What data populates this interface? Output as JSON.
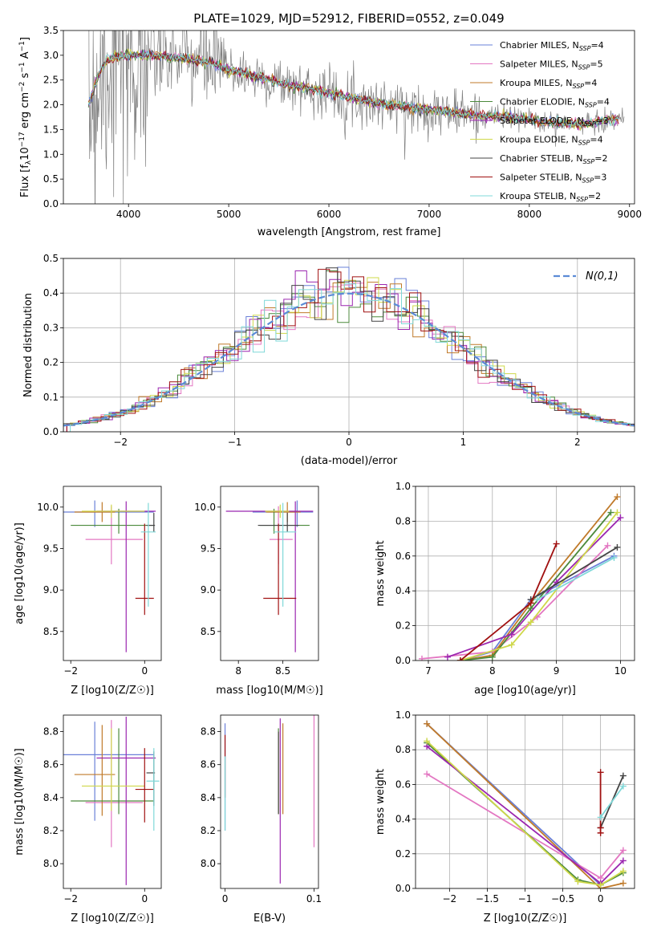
{
  "title": "PLATE=1029, MJD=52912, FIBERID=0552, z=0.049",
  "legend_entries": [
    {
      "name": "Chabrier MILES, N",
      "sub": "SSP",
      "tail": "=4",
      "color": "#6a80d8"
    },
    {
      "name": "Salpeter MILES, N",
      "sub": "SSP",
      "tail": "=5",
      "color": "#e377c2"
    },
    {
      "name": "Kroupa MILES, N",
      "sub": "SSP",
      "tail": "=4",
      "color": "#c07a2a"
    },
    {
      "name": "Chabrier ELODIE, N",
      "sub": "SSP",
      "tail": "=4",
      "color": "#4c8a3c"
    },
    {
      "name": "Salpeter ELODIE, N",
      "sub": "SSP",
      "tail": "=3",
      "color": "#9b27b0"
    },
    {
      "name": "Kroupa ELODIE, N",
      "sub": "SSP",
      "tail": "=4",
      "color": "#cfd84a"
    },
    {
      "name": "Chabrier STELIB, N",
      "sub": "SSP",
      "tail": "=2",
      "color": "#444444"
    },
    {
      "name": "Salpeter STELIB, N",
      "sub": "SSP",
      "tail": "=3",
      "color": "#a01010"
    },
    {
      "name": "Kroupa STELIB, N",
      "sub": "SSP",
      "tail": "=2",
      "color": "#7fd8d8"
    }
  ],
  "chart_data": [
    {
      "type": "line",
      "xlabel": "wavelength [Angstrom, rest frame]",
      "ylabel": "Flux [f_λ 10^-17 erg cm^-2 s^-1 A^-1]",
      "xlim": [
        3350,
        9050
      ],
      "ylim": [
        0,
        3.5
      ],
      "xticks": [
        4000,
        5000,
        6000,
        7000,
        8000,
        9000
      ],
      "yticks": [
        0.0,
        0.5,
        1.0,
        1.5,
        2.0,
        2.5,
        3.0,
        3.5
      ],
      "data_color": "#808080",
      "model_continuum": {
        "x": [
          3600,
          3700,
          3800,
          4000,
          4200,
          4500,
          4800,
          5000,
          5300,
          5600,
          6000,
          6300,
          6600,
          7000,
          7400,
          7800,
          8200,
          8500,
          8800
        ],
        "y": [
          2.0,
          2.6,
          2.95,
          3.0,
          3.0,
          2.95,
          2.85,
          2.7,
          2.55,
          2.4,
          2.25,
          2.1,
          2.0,
          1.9,
          1.8,
          1.75,
          1.65,
          1.6,
          1.7
        ]
      },
      "grid": false
    },
    {
      "type": "histogram",
      "xlabel": "(data-model)/error",
      "ylabel": "Normed distribution",
      "xlim": [
        -2.5,
        2.5
      ],
      "ylim": [
        0,
        0.5
      ],
      "xticks": [
        -2,
        -1,
        0,
        1,
        2
      ],
      "yticks": [
        0.0,
        0.1,
        0.2,
        0.3,
        0.4,
        0.5
      ],
      "legend": "N(0,1)",
      "gaussian": {
        "mean": 0,
        "sigma": 1,
        "color": "#5b8bd6"
      },
      "grid": true
    },
    {
      "type": "scatter",
      "xlabel": "Z [log10(Z/Z☉)]",
      "ylabel": "age [log10(age/yr)]",
      "xlim": [
        -2.2,
        0.45
      ],
      "ylim": [
        8.15,
        10.25
      ],
      "xticks": [
        -2,
        0
      ],
      "yticks": [
        8.5,
        9.0,
        9.5,
        10.0
      ],
      "points": [
        {
          "x": -1.35,
          "y": 9.94,
          "xe": [
            0.95,
            1.6
          ],
          "ye": [
            0.18,
            0.14
          ],
          "c": "#6a80d8"
        },
        {
          "x": -0.9,
          "y": 9.61,
          "xe": [
            0.7,
            0.85
          ],
          "ye": [
            0.3,
            0.4
          ],
          "c": "#e377c2"
        },
        {
          "x": -1.15,
          "y": 9.94,
          "xe": [
            0.75,
            0.35
          ],
          "ye": [
            0.12,
            0.12
          ],
          "c": "#c07a2a"
        },
        {
          "x": -0.7,
          "y": 9.78,
          "xe": [
            1.3,
            0.95
          ],
          "ye": [
            0.1,
            0.2
          ],
          "c": "#4c8a3c"
        },
        {
          "x": -0.5,
          "y": 9.95,
          "xe": [
            0.8,
            0.8
          ],
          "ye": [
            1.7,
            0.12
          ],
          "c": "#9b27b0"
        },
        {
          "x": -0.9,
          "y": 9.95,
          "xe": [
            0.8,
            0.9
          ],
          "ye": [
            0.08,
            0.08
          ],
          "c": "#cfd84a"
        },
        {
          "x": 0.25,
          "y": 9.78,
          "xe": [
            0.2,
            0.03
          ],
          "ye": [
            0.08,
            0.15
          ],
          "c": "#444444"
        },
        {
          "x": 0.0,
          "y": 8.9,
          "xe": [
            0.25,
            0.25
          ],
          "ye": [
            0.2,
            0.9
          ],
          "c": "#a01010"
        },
        {
          "x": 0.1,
          "y": 9.7,
          "xe": [
            0.2,
            0.2
          ],
          "ye": [
            0.9,
            0.35
          ],
          "c": "#7fd8d8"
        }
      ],
      "grid": false
    },
    {
      "type": "scatter",
      "xlabel": "mass [log10(M/M☉)]",
      "ylabel": "",
      "xlim": [
        7.8,
        8.9
      ],
      "ylim": [
        8.15,
        10.25
      ],
      "xticks": [
        8.0,
        8.5
      ],
      "yticks": [
        8.5,
        9.0,
        9.5,
        10.0
      ],
      "points": [
        {
          "x": 8.66,
          "y": 9.94,
          "xe": [
            0.5,
            0.18
          ],
          "ye": [
            0.18,
            0.14
          ],
          "c": "#6a80d8"
        },
        {
          "x": 8.45,
          "y": 9.61,
          "xe": [
            0.1,
            0.16
          ],
          "ye": [
            0.3,
            0.4
          ],
          "c": "#e377c2"
        },
        {
          "x": 8.55,
          "y": 9.94,
          "xe": [
            0.24,
            0.15
          ],
          "ye": [
            0.12,
            0.12
          ],
          "c": "#c07a2a"
        },
        {
          "x": 8.4,
          "y": 9.78,
          "xe": [
            0.16,
            0.4
          ],
          "ye": [
            0.1,
            0.2
          ],
          "c": "#4c8a3c"
        },
        {
          "x": 8.64,
          "y": 9.95,
          "xe": [
            0.78,
            0.2
          ],
          "ye": [
            1.7,
            0.12
          ],
          "c": "#9b27b0"
        },
        {
          "x": 8.47,
          "y": 9.95,
          "xe": [
            0.17,
            0.1
          ],
          "ye": [
            0.08,
            0.08
          ],
          "c": "#cfd84a"
        },
        {
          "x": 8.55,
          "y": 9.78,
          "xe": [
            0.33,
            0.13
          ],
          "ye": [
            0.08,
            0.15
          ],
          "c": "#444444"
        },
        {
          "x": 8.45,
          "y": 8.9,
          "xe": [
            0.17,
            0.2
          ],
          "ye": [
            0.2,
            0.9
          ],
          "c": "#a01010"
        },
        {
          "x": 8.5,
          "y": 9.7,
          "xe": [
            0.1,
            0.15
          ],
          "ye": [
            0.9,
            0.35
          ],
          "c": "#7fd8d8"
        }
      ],
      "grid": false
    },
    {
      "type": "line",
      "xlabel": "age [log10(age/yr)]",
      "ylabel": "mass weight",
      "xlim": [
        6.8,
        10.22
      ],
      "ylim": [
        0,
        1.0
      ],
      "xticks": [
        7,
        8,
        9,
        10
      ],
      "yticks": [
        0.0,
        0.2,
        0.4,
        0.6,
        0.8,
        1.0
      ],
      "series": [
        {
          "c": "#6a80d8",
          "x": [
            7.5,
            8.0,
            8.6,
            9.9
          ],
          "y": [
            0.0,
            0.05,
            0.35,
            0.6
          ]
        },
        {
          "c": "#e377c2",
          "x": [
            6.9,
            8.0,
            8.7,
            9.8
          ],
          "y": [
            0.01,
            0.05,
            0.25,
            0.66
          ]
        },
        {
          "c": "#c07a2a",
          "x": [
            7.5,
            8.0,
            8.6,
            9.95
          ],
          "y": [
            0.0,
            0.03,
            0.33,
            0.94
          ]
        },
        {
          "c": "#4c8a3c",
          "x": [
            7.5,
            8.0,
            8.6,
            9.85
          ],
          "y": [
            0.0,
            0.02,
            0.3,
            0.85
          ]
        },
        {
          "c": "#9b27b0",
          "x": [
            7.3,
            8.3,
            9.0,
            10.0
          ],
          "y": [
            0.02,
            0.15,
            0.45,
            0.82
          ]
        },
        {
          "c": "#cfd84a",
          "x": [
            7.5,
            8.3,
            8.6,
            9.95
          ],
          "y": [
            0.0,
            0.09,
            0.22,
            0.85
          ]
        },
        {
          "c": "#444444",
          "x": [
            8.6,
            9.95
          ],
          "y": [
            0.35,
            0.65
          ]
        },
        {
          "c": "#a01010",
          "x": [
            7.5,
            8.6,
            9.0
          ],
          "y": [
            0.0,
            0.33,
            0.67
          ]
        },
        {
          "c": "#7fd8d8",
          "x": [
            8.7,
            9.9
          ],
          "y": [
            0.35,
            0.59
          ]
        }
      ],
      "grid": true
    },
    {
      "type": "scatter",
      "xlabel": "Z [log10(Z/Z☉)]",
      "ylabel": "mass [log10(M/M☉)]",
      "xlim": [
        -2.2,
        0.45
      ],
      "ylim": [
        7.85,
        8.9
      ],
      "xticks": [
        -2,
        0
      ],
      "yticks": [
        8.0,
        8.2,
        8.4,
        8.6,
        8.8
      ],
      "points": [
        {
          "x": -1.35,
          "y": 8.66,
          "xe": [
            0.95,
            1.6
          ],
          "ye": [
            0.4,
            0.2
          ],
          "c": "#6a80d8"
        },
        {
          "x": -0.9,
          "y": 8.37,
          "xe": [
            0.7,
            0.85
          ],
          "ye": [
            0.27,
            0.5
          ],
          "c": "#e377c2"
        },
        {
          "x": -1.15,
          "y": 8.54,
          "xe": [
            0.75,
            0.35
          ],
          "ye": [
            0.25,
            0.3
          ],
          "c": "#c07a2a"
        },
        {
          "x": -0.7,
          "y": 8.38,
          "xe": [
            1.3,
            0.95
          ],
          "ye": [
            0.08,
            0.44
          ],
          "c": "#4c8a3c"
        },
        {
          "x": -0.5,
          "y": 8.64,
          "xe": [
            0.8,
            0.8
          ],
          "ye": [
            0.77,
            0.25
          ],
          "c": "#9b27b0"
        },
        {
          "x": -0.9,
          "y": 8.47,
          "xe": [
            0.8,
            0.9
          ],
          "ye": [
            0.15,
            0.35
          ],
          "c": "#cfd84a"
        },
        {
          "x": 0.25,
          "y": 8.55,
          "xe": [
            0.2,
            0.03
          ],
          "ye": [
            0.2,
            0.13
          ],
          "c": "#444444"
        },
        {
          "x": 0.0,
          "y": 8.45,
          "xe": [
            0.25,
            0.25
          ],
          "ye": [
            0.2,
            0.25
          ],
          "c": "#a01010"
        },
        {
          "x": 0.25,
          "y": 8.5,
          "xe": [
            0.2,
            0.15
          ],
          "ye": [
            0.3,
            0.2
          ],
          "c": "#7fd8d8"
        }
      ],
      "grid": false
    },
    {
      "type": "scatter",
      "xlabel": "E(B-V)",
      "ylabel": "",
      "xlim": [
        -0.005,
        0.105
      ],
      "ylim": [
        7.85,
        8.9
      ],
      "xticks": [
        0.0,
        0.1
      ],
      "yticks": [
        8.0,
        8.2,
        8.4,
        8.6,
        8.8
      ],
      "points": [
        {
          "x": 0.0,
          "y": 8.6,
          "xe": [
            0,
            0
          ],
          "ye": [
            0.4,
            0.25
          ],
          "c": "#6a80d8"
        },
        {
          "x": 0.1,
          "y": 8.5,
          "xe": [
            0,
            0
          ],
          "ye": [
            0.4,
            0.4
          ],
          "c": "#e377c2"
        },
        {
          "x": 0.065,
          "y": 8.55,
          "xe": [
            0,
            0
          ],
          "ye": [
            0.25,
            0.3
          ],
          "c": "#c07a2a"
        },
        {
          "x": 0.06,
          "y": 8.55,
          "xe": [
            0,
            0
          ],
          "ye": [
            0.25,
            0.27
          ],
          "c": "#4c8a3c"
        },
        {
          "x": 0.062,
          "y": 8.6,
          "xe": [
            0,
            0
          ],
          "ye": [
            0.72,
            0.28
          ],
          "c": "#9b27b0"
        },
        {
          "x": 0.06,
          "y": 8.5,
          "xe": [
            0,
            0
          ],
          "ye": [
            0.2,
            0.3
          ],
          "c": "#cfd84a"
        },
        {
          "x": 0.06,
          "y": 8.6,
          "xe": [
            0,
            0
          ],
          "ye": [
            0.3,
            0.2
          ],
          "c": "#444444"
        },
        {
          "x": 0.0,
          "y": 8.6,
          "xe": [
            0,
            0
          ],
          "ye": [
            0.2,
            0.18
          ],
          "c": "#a01010"
        },
        {
          "x": 0.0,
          "y": 8.45,
          "xe": [
            0,
            0
          ],
          "ye": [
            0.25,
            0.2
          ],
          "c": "#7fd8d8"
        }
      ],
      "grid": false
    },
    {
      "type": "line",
      "xlabel": "Z [log10(Z/Z☉)]",
      "ylabel": "mass weight",
      "xlim": [
        -2.45,
        0.45
      ],
      "ylim": [
        0,
        1.0
      ],
      "xticks": [
        -2.0,
        -1.5,
        -1.0,
        -0.5,
        0.0
      ],
      "yticks": [
        0.0,
        0.2,
        0.4,
        0.6,
        0.8,
        1.0
      ],
      "series": [
        {
          "c": "#6a80d8",
          "x": [
            -2.3,
            0.0
          ],
          "y": [
            0.95,
            0.02
          ]
        },
        {
          "c": "#e377c2",
          "x": [
            -2.3,
            0.0,
            0.3
          ],
          "y": [
            0.66,
            0.06,
            0.22
          ]
        },
        {
          "c": "#c07a2a",
          "x": [
            -2.3,
            0.0,
            0.3
          ],
          "y": [
            0.95,
            0.0,
            0.03
          ]
        },
        {
          "c": "#4c8a3c",
          "x": [
            -2.3,
            -0.3,
            0.0,
            0.3
          ],
          "y": [
            0.84,
            0.05,
            0.02,
            0.09
          ]
        },
        {
          "c": "#9b27b0",
          "x": [
            -2.3,
            0.0,
            0.3
          ],
          "y": [
            0.82,
            0.03,
            0.16
          ]
        },
        {
          "c": "#cfd84a",
          "x": [
            -2.3,
            -0.3,
            0.0,
            0.3
          ],
          "y": [
            0.85,
            0.04,
            0.02,
            0.1
          ]
        },
        {
          "c": "#444444",
          "x": [
            0.0,
            0.3
          ],
          "y": [
            0.35,
            0.65
          ]
        },
        {
          "c": "#a01010",
          "x": [
            0.0,
            0.0,
            0.0
          ],
          "y": [
            0.67,
            0.35,
            0.32
          ]
        },
        {
          "c": "#7fd8d8",
          "x": [
            0.0,
            0.3
          ],
          "y": [
            0.41,
            0.59
          ]
        }
      ],
      "grid": true
    }
  ]
}
